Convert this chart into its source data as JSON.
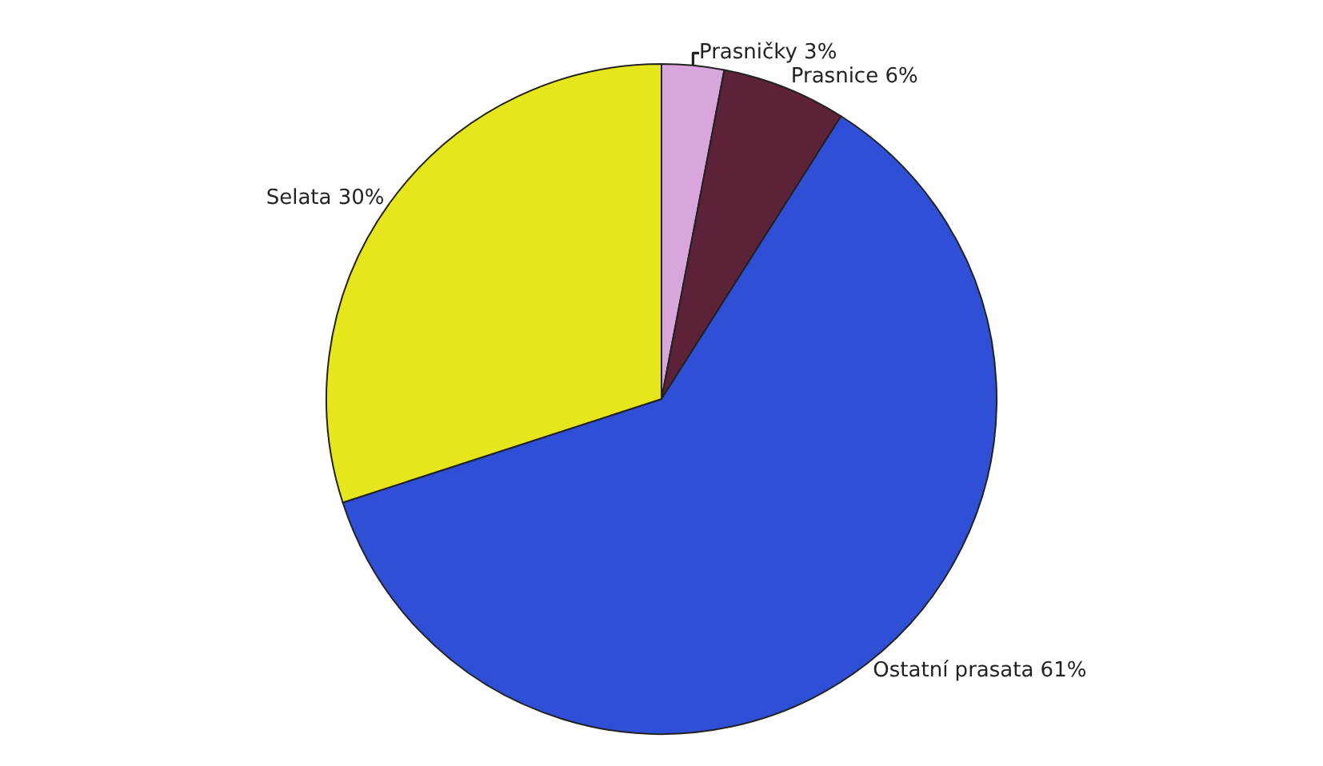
{
  "chart_data": {
    "type": "pie",
    "categories": [
      "Prasničky",
      "Prasnice",
      "Ostatní prasata",
      "Selata"
    ],
    "values": [
      3,
      6,
      61,
      30
    ],
    "value_labels": [
      "3%",
      "6%",
      "61%",
      "30%"
    ],
    "colors": [
      "#d8a6dc",
      "#5c2238",
      "#2f4fd6",
      "#e6e61c"
    ],
    "legend": false
  }
}
